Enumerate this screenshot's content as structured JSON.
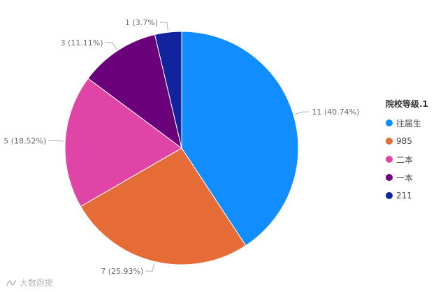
{
  "chart_data": {
    "type": "pie",
    "legend_title": "院校等级.1",
    "legend_position": "right",
    "slices": [
      {
        "name": "往届生",
        "value": 11,
        "label": "11 (40.74%)",
        "color": "#118dff"
      },
      {
        "name": "985",
        "value": 7,
        "label": "7 (25.93%)",
        "color": "#e66c37"
      },
      {
        "name": "二本",
        "value": 5,
        "label": "5 (18.52%)",
        "color": "#e044a7"
      },
      {
        "name": "一本",
        "value": 3,
        "label": "3 (11.11%)",
        "color": "#6b007b"
      },
      {
        "name": "211",
        "value": 1,
        "label": "1 (3.7%)",
        "color": "#12239e"
      }
    ]
  },
  "watermark": {
    "text": "大数跑提"
  }
}
